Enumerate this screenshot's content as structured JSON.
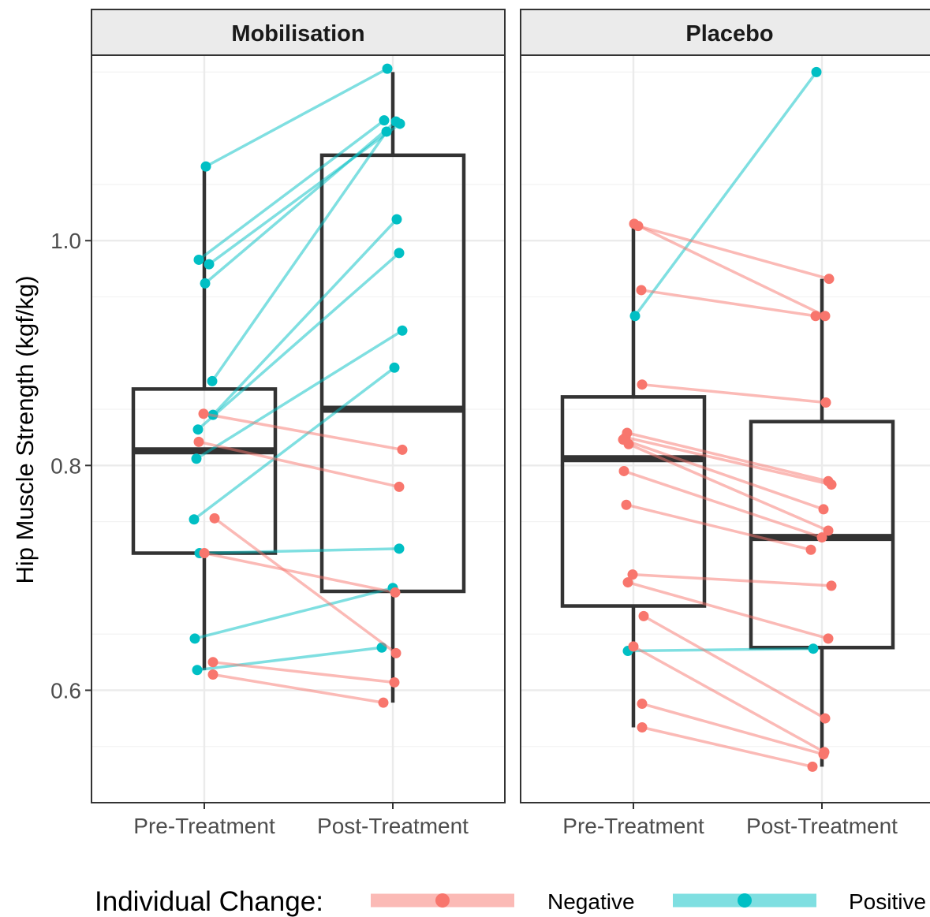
{
  "chart_data": {
    "type": "boxplot",
    "ylabel": "Hip Muscle Strength (kgf/kg)",
    "xlabel": "",
    "categories": [
      "Pre-Treatment",
      "Post-Treatment"
    ],
    "ylim": [
      0.5,
      1.165
    ],
    "yticks": [
      0.6,
      0.8,
      1.0
    ],
    "ytick_labels": [
      "0.6",
      "0.8",
      "1.0"
    ],
    "grid": true,
    "legend": {
      "title": "Individual Change:",
      "position": "bottom",
      "entries": [
        {
          "label": "Negative",
          "color": "#F8766D"
        },
        {
          "label": "Positive",
          "color": "#00BFC4"
        }
      ]
    },
    "colors": {
      "Negative": "#F8766D",
      "Positive": "#00BFC4",
      "box": "#333333"
    },
    "panels": [
      {
        "label": "Mobilisation",
        "boxes": [
          {
            "category": "Pre-Treatment",
            "whisker_low": 0.618,
            "q1": 0.722,
            "median": 0.813,
            "q3": 0.868,
            "whisker_high": 1.066
          },
          {
            "category": "Post-Treatment",
            "whisker_low": 0.589,
            "q1": 0.688,
            "median": 0.85,
            "q3": 1.076,
            "whisker_high": 1.15
          }
        ],
        "pairs": [
          {
            "pre": 1.066,
            "post": 1.153,
            "change": "Positive"
          },
          {
            "pre": 0.983,
            "post": 1.107,
            "change": "Positive"
          },
          {
            "pre": 0.979,
            "post": 1.104,
            "change": "Positive"
          },
          {
            "pre": 0.962,
            "post": 1.106,
            "change": "Positive"
          },
          {
            "pre": 0.875,
            "post": 1.097,
            "change": "Positive"
          },
          {
            "pre": 0.845,
            "post": 1.019,
            "change": "Positive"
          },
          {
            "pre": 0.832,
            "post": 0.989,
            "change": "Positive"
          },
          {
            "pre": 0.806,
            "post": 0.92,
            "change": "Positive"
          },
          {
            "pre": 0.752,
            "post": 0.887,
            "change": "Positive"
          },
          {
            "pre": 0.722,
            "post": 0.726,
            "change": "Positive"
          },
          {
            "pre": 0.646,
            "post": 0.691,
            "change": "Positive"
          },
          {
            "pre": 0.618,
            "post": 0.638,
            "change": "Positive"
          },
          {
            "pre": 0.846,
            "post": 0.814,
            "change": "Negative"
          },
          {
            "pre": 0.821,
            "post": 0.781,
            "change": "Negative"
          },
          {
            "pre": 0.753,
            "post": 0.633,
            "change": "Negative"
          },
          {
            "pre": 0.722,
            "post": 0.687,
            "change": "Negative"
          },
          {
            "pre": 0.625,
            "post": 0.607,
            "change": "Negative"
          },
          {
            "pre": 0.614,
            "post": 0.589,
            "change": "Negative"
          }
        ]
      },
      {
        "label": "Placebo",
        "boxes": [
          {
            "category": "Pre-Treatment",
            "whisker_low": 0.567,
            "q1": 0.675,
            "median": 0.806,
            "q3": 0.861,
            "whisker_high": 1.013
          },
          {
            "category": "Post-Treatment",
            "whisker_low": 0.532,
            "q1": 0.638,
            "median": 0.736,
            "q3": 0.839,
            "whisker_high": 0.966
          }
        ],
        "pairs": [
          {
            "pre": 0.933,
            "post": 1.15,
            "change": "Positive"
          },
          {
            "pre": 0.635,
            "post": 0.637,
            "change": "Positive"
          },
          {
            "pre": 1.013,
            "post": 0.966,
            "change": "Negative"
          },
          {
            "pre": 1.015,
            "post": 0.933,
            "change": "Negative"
          },
          {
            "pre": 0.956,
            "post": 0.933,
            "change": "Negative"
          },
          {
            "pre": 0.872,
            "post": 0.856,
            "change": "Negative"
          },
          {
            "pre": 0.829,
            "post": 0.786,
            "change": "Negative"
          },
          {
            "pre": 0.825,
            "post": 0.783,
            "change": "Negative"
          },
          {
            "pre": 0.823,
            "post": 0.761,
            "change": "Negative"
          },
          {
            "pre": 0.819,
            "post": 0.742,
            "change": "Negative"
          },
          {
            "pre": 0.795,
            "post": 0.736,
            "change": "Negative"
          },
          {
            "pre": 0.765,
            "post": 0.725,
            "change": "Negative"
          },
          {
            "pre": 0.703,
            "post": 0.693,
            "change": "Negative"
          },
          {
            "pre": 0.696,
            "post": 0.646,
            "change": "Negative"
          },
          {
            "pre": 0.666,
            "post": 0.575,
            "change": "Negative"
          },
          {
            "pre": 0.639,
            "post": 0.545,
            "change": "Negative"
          },
          {
            "pre": 0.588,
            "post": 0.543,
            "change": "Negative"
          },
          {
            "pre": 0.567,
            "post": 0.532,
            "change": "Negative"
          }
        ]
      }
    ]
  }
}
